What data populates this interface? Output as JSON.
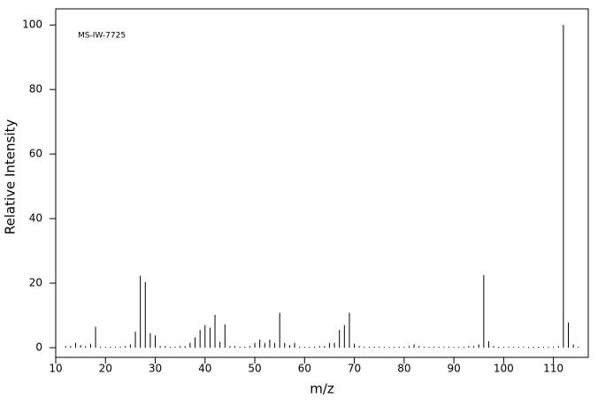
{
  "chart_data": {
    "type": "bar",
    "annotation": "MS-IW-7725",
    "xlabel": "m/z",
    "ylabel": "Relative Intensity",
    "color": "#000000",
    "x": [
      12,
      13,
      14,
      15,
      16,
      17,
      18,
      19,
      20,
      21,
      22,
      23,
      24,
      25,
      26,
      27,
      28,
      29,
      30,
      31,
      32,
      33,
      34,
      35,
      36,
      37,
      38,
      39,
      40,
      41,
      42,
      43,
      44,
      45,
      46,
      47,
      48,
      49,
      50,
      51,
      52,
      53,
      54,
      55,
      56,
      57,
      58,
      59,
      60,
      61,
      62,
      63,
      64,
      65,
      66,
      67,
      68,
      69,
      70,
      71,
      72,
      73,
      74,
      75,
      76,
      77,
      78,
      79,
      80,
      81,
      82,
      83,
      84,
      85,
      86,
      87,
      88,
      89,
      90,
      91,
      92,
      93,
      94,
      95,
      96,
      97,
      98,
      99,
      100,
      101,
      102,
      103,
      104,
      105,
      106,
      107,
      108,
      109,
      110,
      111,
      112,
      113,
      114,
      115
    ],
    "values": [
      0.5,
      0.5,
      1.5,
      0.8,
      0.5,
      1.2,
      6.5,
      0.3,
      0.3,
      0.3,
      0.3,
      0.3,
      0.5,
      1.0,
      5,
      22.3,
      20.3,
      4.5,
      3.8,
      0.5,
      0.5,
      0.3,
      0.3,
      0.5,
      0.5,
      1.5,
      3.2,
      5.5,
      7,
      6.2,
      10.2,
      1.8,
      7.2,
      0.5,
      0.5,
      0.3,
      0.3,
      0.5,
      1.5,
      2.5,
      1.5,
      2.5,
      1.5,
      10.8,
      1.5,
      0.8,
      1.5,
      0.3,
      0.3,
      0.3,
      0.3,
      0.5,
      0.5,
      1.5,
      1.5,
      5.5,
      7,
      10.8,
      1.2,
      0.5,
      0.3,
      0.3,
      0.3,
      0.3,
      0.3,
      0.3,
      0.3,
      0.3,
      0.3,
      0.5,
      1,
      0.5,
      0.3,
      0.3,
      0.3,
      0.3,
      0.3,
      0.3,
      0.3,
      0.3,
      0.3,
      0.5,
      0.5,
      1,
      22.5,
      2,
      0.5,
      0.3,
      0.3,
      0.3,
      0.3,
      0.3,
      0.3,
      0.3,
      0.3,
      0.3,
      0.3,
      0.3,
      0.3,
      0.5,
      100,
      7.8,
      1,
      0.3
    ],
    "xlim": [
      10,
      117
    ],
    "xticks": [
      10,
      20,
      30,
      40,
      50,
      60,
      70,
      80,
      90,
      100,
      110
    ],
    "ylim": [
      -3,
      105
    ],
    "yticks": [
      0,
      20,
      40,
      60,
      80,
      100
    ]
  }
}
